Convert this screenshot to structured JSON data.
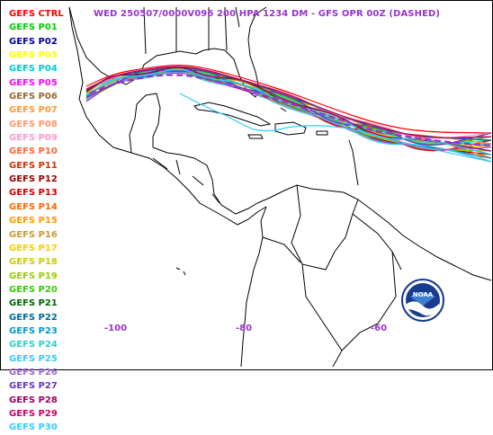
{
  "title": "WED 250507/0000V096  200 HPA 1234 DM - GFS OPR 00Z (DASHED)",
  "legend": [
    {
      "label": "GEFS CTRL",
      "color": "#ff0000"
    },
    {
      "label": "GEFS P01",
      "color": "#00cc00"
    },
    {
      "label": "GEFS P02",
      "color": "#000099"
    },
    {
      "label": "GEFS P03",
      "color": "#ffff00"
    },
    {
      "label": "GEFS P04",
      "color": "#00cccc"
    },
    {
      "label": "GEFS P05",
      "color": "#ff00ff"
    },
    {
      "label": "GEFS P06",
      "color": "#996633"
    },
    {
      "label": "GEFS P07",
      "color": "#ff9933"
    },
    {
      "label": "GEFS P08",
      "color": "#ff9966"
    },
    {
      "label": "GEFS P09",
      "color": "#ff99cc"
    },
    {
      "label": "GEFS P10",
      "color": "#ff6633"
    },
    {
      "label": "GEFS P11",
      "color": "#cc3300"
    },
    {
      "label": "GEFS P12",
      "color": "#990000"
    },
    {
      "label": "GEFS P13",
      "color": "#cc0000"
    },
    {
      "label": "GEFS P14",
      "color": "#ff6600"
    },
    {
      "label": "GEFS P15",
      "color": "#ff9900"
    },
    {
      "label": "GEFS P16",
      "color": "#cc9933"
    },
    {
      "label": "GEFS P17",
      "color": "#ffcc00"
    },
    {
      "label": "GEFS P18",
      "color": "#cccc00"
    },
    {
      "label": "GEFS P19",
      "color": "#99cc00"
    },
    {
      "label": "GEFS P20",
      "color": "#33cc00"
    },
    {
      "label": "GEFS P21",
      "color": "#006600"
    },
    {
      "label": "GEFS P22",
      "color": "#006699"
    },
    {
      "label": "GEFS P23",
      "color": "#0099cc"
    },
    {
      "label": "GEFS P24",
      "color": "#33cccc"
    },
    {
      "label": "GEFS P25",
      "color": "#33ccff"
    },
    {
      "label": "GEFS P26",
      "color": "#9966cc"
    },
    {
      "label": "GEFS P27",
      "color": "#6633cc"
    },
    {
      "label": "GEFS P28",
      "color": "#990066"
    },
    {
      "label": "GEFS P29",
      "color": "#cc0066"
    },
    {
      "label": "GEFS P30",
      "color": "#33ccff"
    }
  ],
  "axis": {
    "label_color": "#9933cc",
    "lon_labels": [
      {
        "text": "-100",
        "lon": -100
      },
      {
        "text": "-80",
        "lon": -80
      },
      {
        "text": "-60",
        "lon": -60
      }
    ]
  },
  "opr_color": "#9933cc",
  "logo_text": "NOAA"
}
